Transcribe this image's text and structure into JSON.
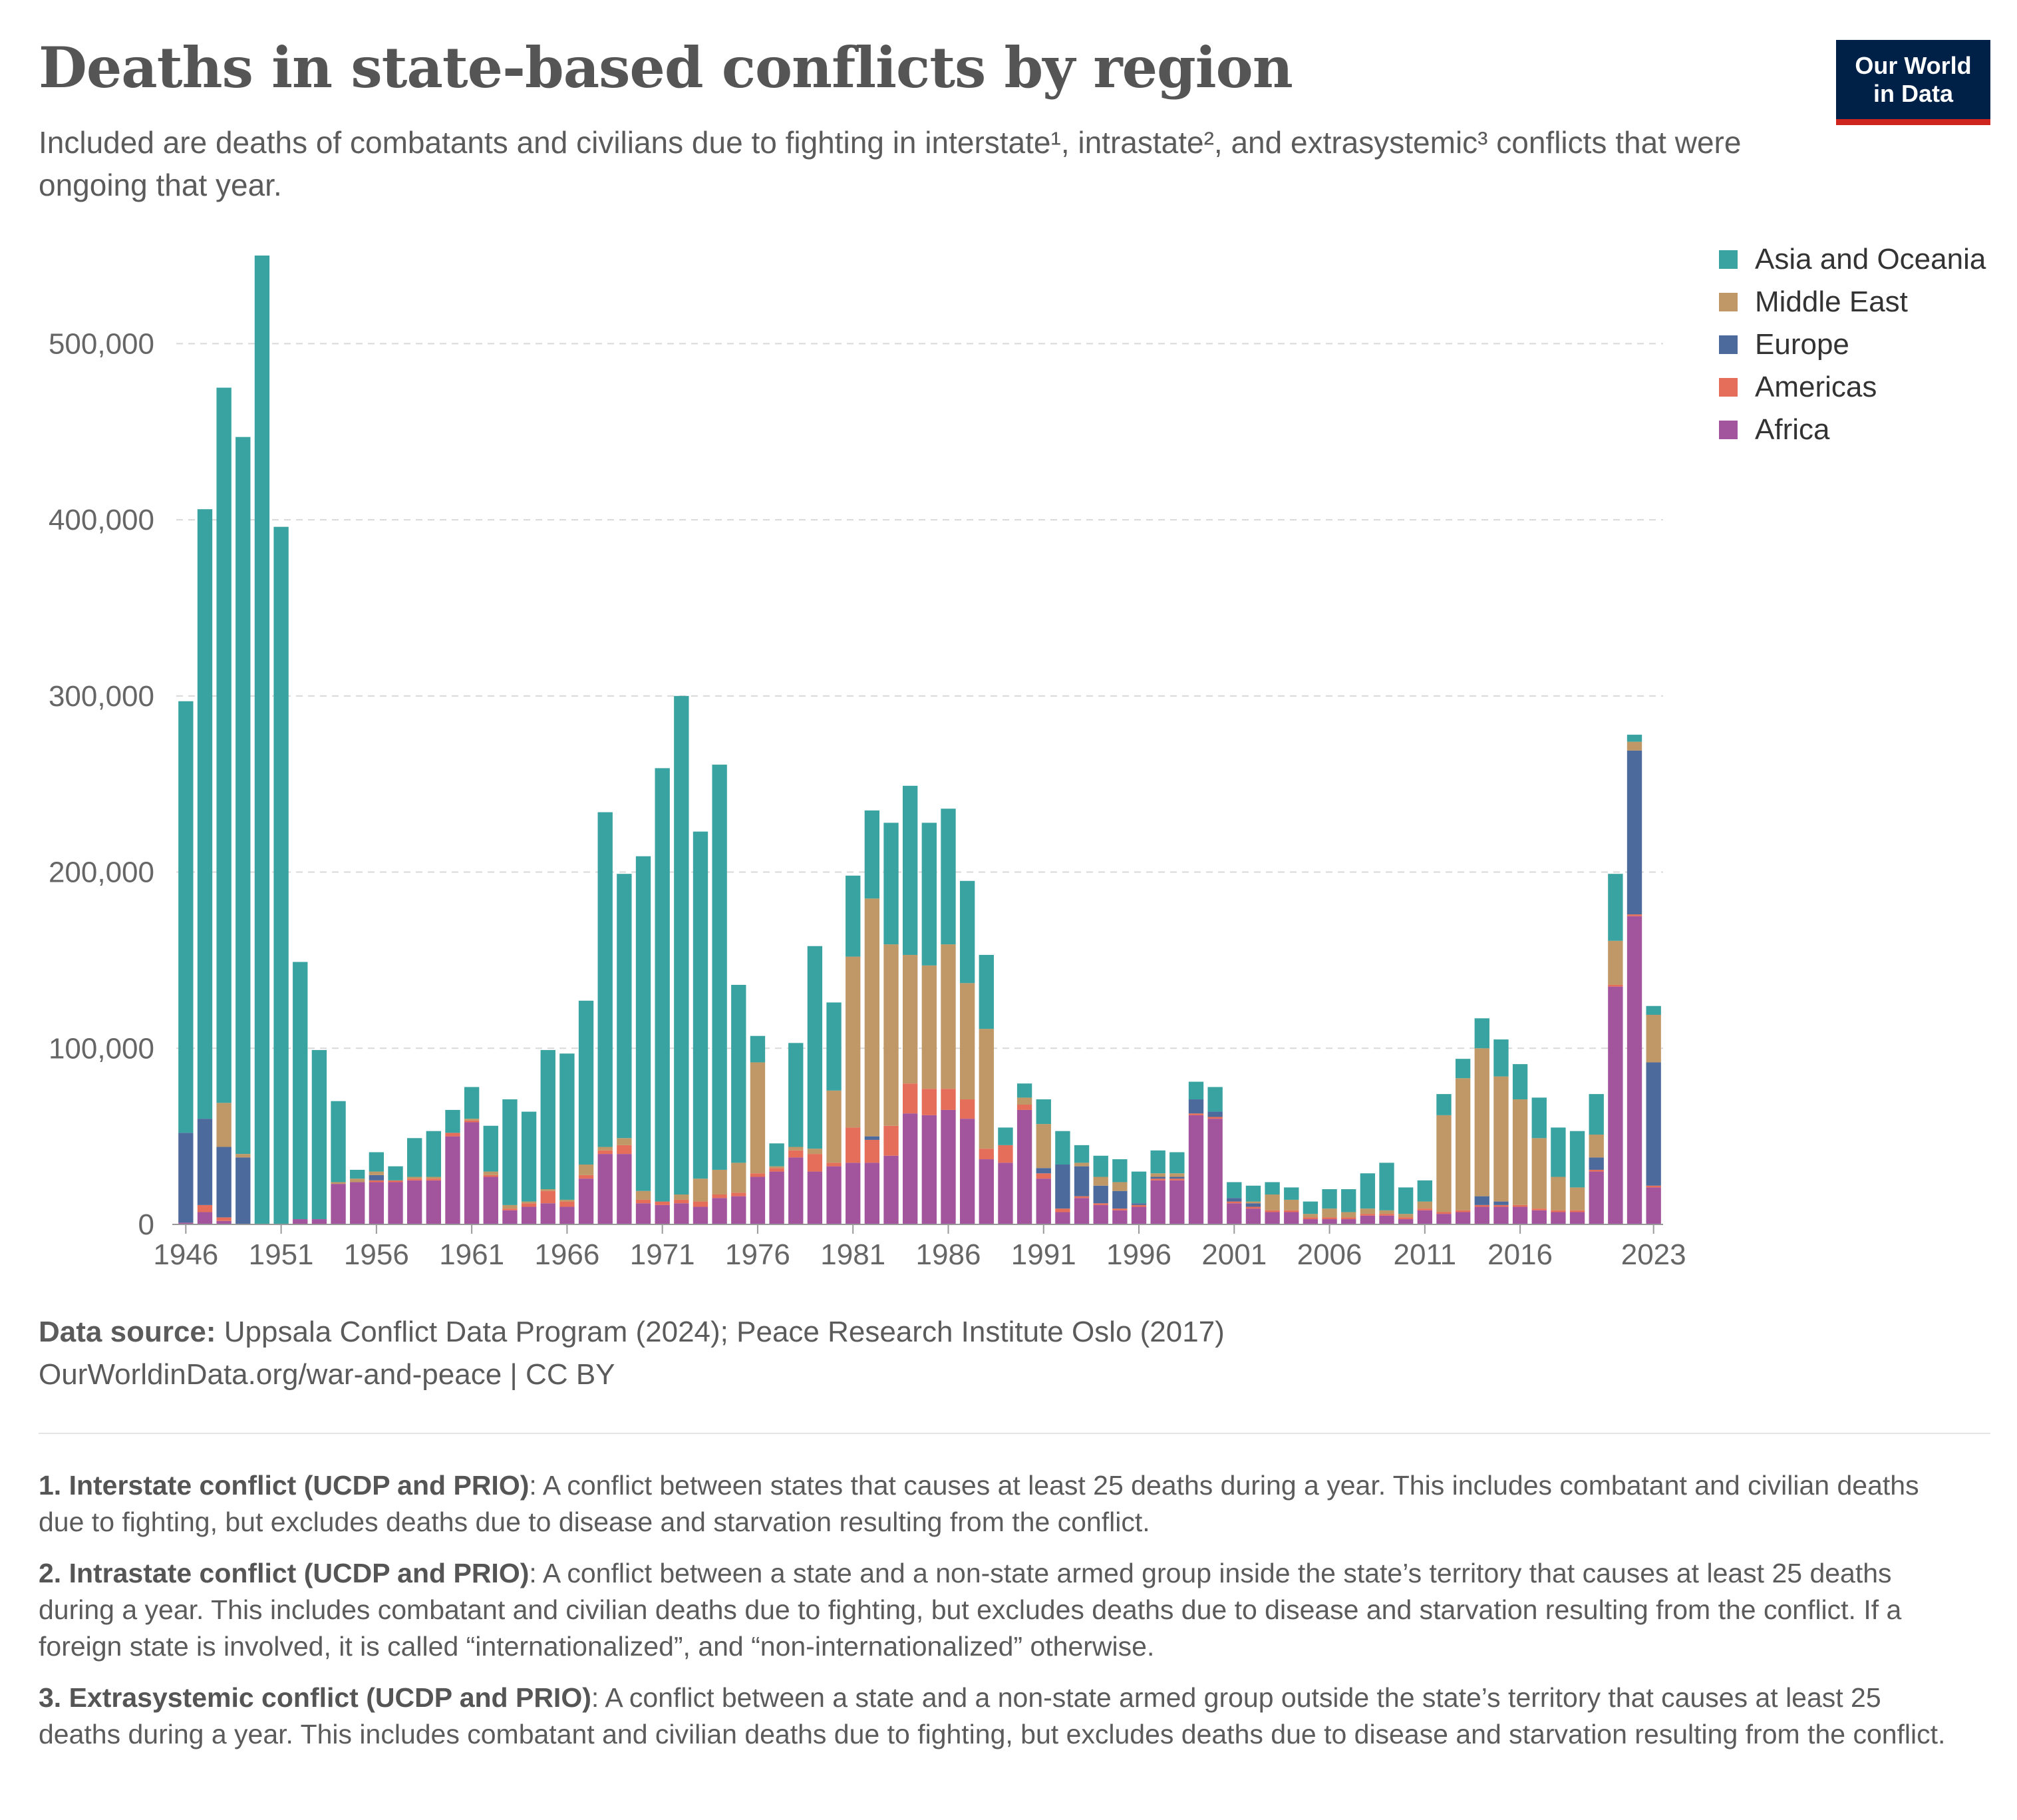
{
  "header": {
    "title": "Deaths in state-based conflicts by region",
    "subtitle": "Included are deaths of combatants and civilians due to fighting in interstate¹, intrastate², and extrasystemic³ conflicts that were ongoing that year."
  },
  "logo": {
    "line1": "Our World",
    "line2": "in Data"
  },
  "footer": {
    "source_label": "Data source:",
    "source_text": "Uppsala Conflict Data Program (2024); Peace Research Institute Oslo (2017)",
    "url": "OurWorldinData.org/war-and-peace | CC BY"
  },
  "notes": [
    {
      "label": "1. Interstate conflict (UCDP and PRIO)",
      "text": ": A conflict between states that causes at least 25 deaths during a year. This includes combatant and civilian deaths due to fighting, but excludes deaths due to disease and starvation resulting from the conflict."
    },
    {
      "label": "2. Intrastate conflict (UCDP and PRIO)",
      "text": ": A conflict between a state and a non-state armed group inside the state’s territory that causes at least 25 deaths during a year. This includes combatant and civilian deaths due to fighting, but excludes deaths due to disease and starvation resulting from the conflict. If a foreign state is involved, it is called “internationalized”, and “non-internationalized” otherwise."
    },
    {
      "label": "3. Extrasystemic conflict (UCDP and PRIO)",
      "text": ": A conflict between a state and a non-state armed group outside the state’s territory that causes at least 25 deaths during a year. This includes combatant and civilian deaths due to fighting, but excludes deaths due to disease and starvation resulting from the conflict."
    }
  ],
  "chart_data": {
    "type": "bar",
    "stacked": true,
    "title": "Deaths in state-based conflicts by region",
    "xlabel": "",
    "ylabel": "",
    "ylim": [
      0,
      550000
    ],
    "yticks": [
      0,
      100000,
      200000,
      300000,
      400000,
      500000
    ],
    "ytick_labels": [
      "0",
      "100,000",
      "200,000",
      "300,000",
      "400,000",
      "500,000"
    ],
    "xtick_labels": [
      "1946",
      "1951",
      "1956",
      "1961",
      "1966",
      "1971",
      "1976",
      "1981",
      "1986",
      "1991",
      "1996",
      "2001",
      "2006",
      "2011",
      "2016",
      "2023"
    ],
    "grid": true,
    "legend_position": "top-right",
    "categories": [
      1946,
      1947,
      1948,
      1949,
      1950,
      1951,
      1952,
      1953,
      1954,
      1955,
      1956,
      1957,
      1958,
      1959,
      1960,
      1961,
      1962,
      1963,
      1964,
      1965,
      1966,
      1967,
      1968,
      1969,
      1970,
      1971,
      1972,
      1973,
      1974,
      1975,
      1976,
      1977,
      1978,
      1979,
      1980,
      1981,
      1982,
      1983,
      1984,
      1985,
      1986,
      1987,
      1988,
      1989,
      1990,
      1991,
      1992,
      1993,
      1994,
      1995,
      1996,
      1997,
      1998,
      1999,
      2000,
      2001,
      2002,
      2003,
      2004,
      2005,
      2006,
      2007,
      2008,
      2009,
      2010,
      2011,
      2012,
      2013,
      2014,
      2015,
      2016,
      2017,
      2018,
      2019,
      2020,
      2021,
      2022,
      2023
    ],
    "series": [
      {
        "name": "Africa",
        "color": "#a2559c",
        "values": [
          1000,
          7000,
          2000,
          0,
          0,
          0,
          3000,
          3000,
          23000,
          24000,
          24000,
          24000,
          25000,
          25000,
          50000,
          58000,
          27000,
          8000,
          10000,
          12000,
          10000,
          26000,
          40000,
          40000,
          12000,
          11000,
          12000,
          10000,
          15000,
          16000,
          27000,
          30000,
          38000,
          30000,
          33000,
          35000,
          35000,
          39000,
          63000,
          62000,
          65000,
          60000,
          37000,
          35000,
          65000,
          26000,
          7000,
          15000,
          11000,
          8000,
          10000,
          25000,
          25000,
          62000,
          60000,
          12000,
          9000,
          7000,
          7000,
          3000,
          3000,
          3000,
          5000,
          5000,
          3000,
          8000,
          6000,
          7000,
          10000,
          10000,
          10000,
          8000,
          7000,
          7000,
          30000,
          135000,
          175000,
          21000
        ]
      },
      {
        "name": "Americas",
        "color": "#e56e5a",
        "values": [
          0,
          4000,
          2000,
          0,
          0,
          0,
          0,
          0,
          0,
          0,
          1000,
          1000,
          1000,
          1000,
          2000,
          1000,
          1000,
          1000,
          2000,
          7000,
          3000,
          2000,
          2000,
          5000,
          2000,
          2000,
          2000,
          3000,
          2000,
          2000,
          2000,
          2000,
          4000,
          10000,
          2000,
          20000,
          13000,
          17000,
          17000,
          15000,
          12000,
          11000,
          6000,
          10000,
          3000,
          3000,
          2000,
          1000,
          1000,
          1000,
          1000,
          1000,
          1000,
          1000,
          1000,
          1000,
          1000,
          1000,
          1000,
          1000,
          1000,
          1000,
          1000,
          1000,
          1000,
          1000,
          1000,
          1000,
          1000,
          1000,
          1000,
          1000,
          1000,
          1000,
          1000,
          1000,
          1000,
          1000
        ]
      },
      {
        "name": "Europe",
        "color": "#4c6a9c",
        "values": [
          51000,
          49000,
          40000,
          38000,
          0,
          0,
          0,
          0,
          0,
          0,
          3000,
          0,
          0,
          0,
          0,
          0,
          0,
          0,
          0,
          0,
          0,
          0,
          0,
          0,
          0,
          0,
          0,
          0,
          0,
          0,
          0,
          0,
          0,
          0,
          0,
          0,
          2000,
          0,
          0,
          0,
          0,
          0,
          0,
          0,
          0,
          3000,
          25000,
          17000,
          10000,
          10000,
          1000,
          1000,
          1000,
          8000,
          3000,
          2000,
          2000,
          0,
          0,
          0,
          0,
          0,
          0,
          0,
          0,
          0,
          0,
          0,
          5000,
          2000,
          0,
          0,
          0,
          0,
          7000,
          0,
          93000,
          70000
        ]
      },
      {
        "name": "Middle East",
        "color": "#c09867",
        "values": [
          0,
          0,
          25000,
          2000,
          0,
          0,
          0,
          0,
          1000,
          2000,
          2000,
          0,
          1000,
          1000,
          0,
          1000,
          2000,
          2000,
          1000,
          1000,
          1000,
          6000,
          2000,
          4000,
          5000,
          0,
          3000,
          13000,
          14000,
          17000,
          63000,
          1000,
          2000,
          3000,
          41000,
          97000,
          135000,
          103000,
          73000,
          70000,
          82000,
          66000,
          68000,
          0,
          4000,
          25000,
          0,
          2000,
          5000,
          5000,
          0,
          2000,
          2000,
          0,
          0,
          0,
          1000,
          9000,
          6000,
          2000,
          5000,
          3000,
          3000,
          2000,
          2000,
          4000,
          55000,
          75000,
          84000,
          71000,
          60000,
          40000,
          19000,
          13000,
          13000,
          25000,
          5000,
          27000
        ]
      },
      {
        "name": "Asia and Oceania",
        "color": "#39a3a2",
        "values": [
          245000,
          346000,
          406000,
          407000,
          550000,
          396000,
          146000,
          96000,
          46000,
          5000,
          11000,
          8000,
          22000,
          26000,
          13000,
          18000,
          26000,
          60000,
          51000,
          79000,
          83000,
          93000,
          190000,
          150000,
          190000,
          246000,
          283000,
          197000,
          230000,
          101000,
          15000,
          13000,
          59000,
          115000,
          50000,
          46000,
          50000,
          69000,
          96000,
          81000,
          77000,
          58000,
          42000,
          10000,
          8000,
          14000,
          19000,
          10000,
          12000,
          13000,
          18000,
          13000,
          12000,
          10000,
          14000,
          9000,
          9000,
          7000,
          7000,
          7000,
          11000,
          13000,
          20000,
          27000,
          15000,
          12000,
          12000,
          11000,
          17000,
          21000,
          20000,
          23000,
          28000,
          32000,
          23000,
          38000,
          4000,
          5000
        ]
      }
    ]
  }
}
